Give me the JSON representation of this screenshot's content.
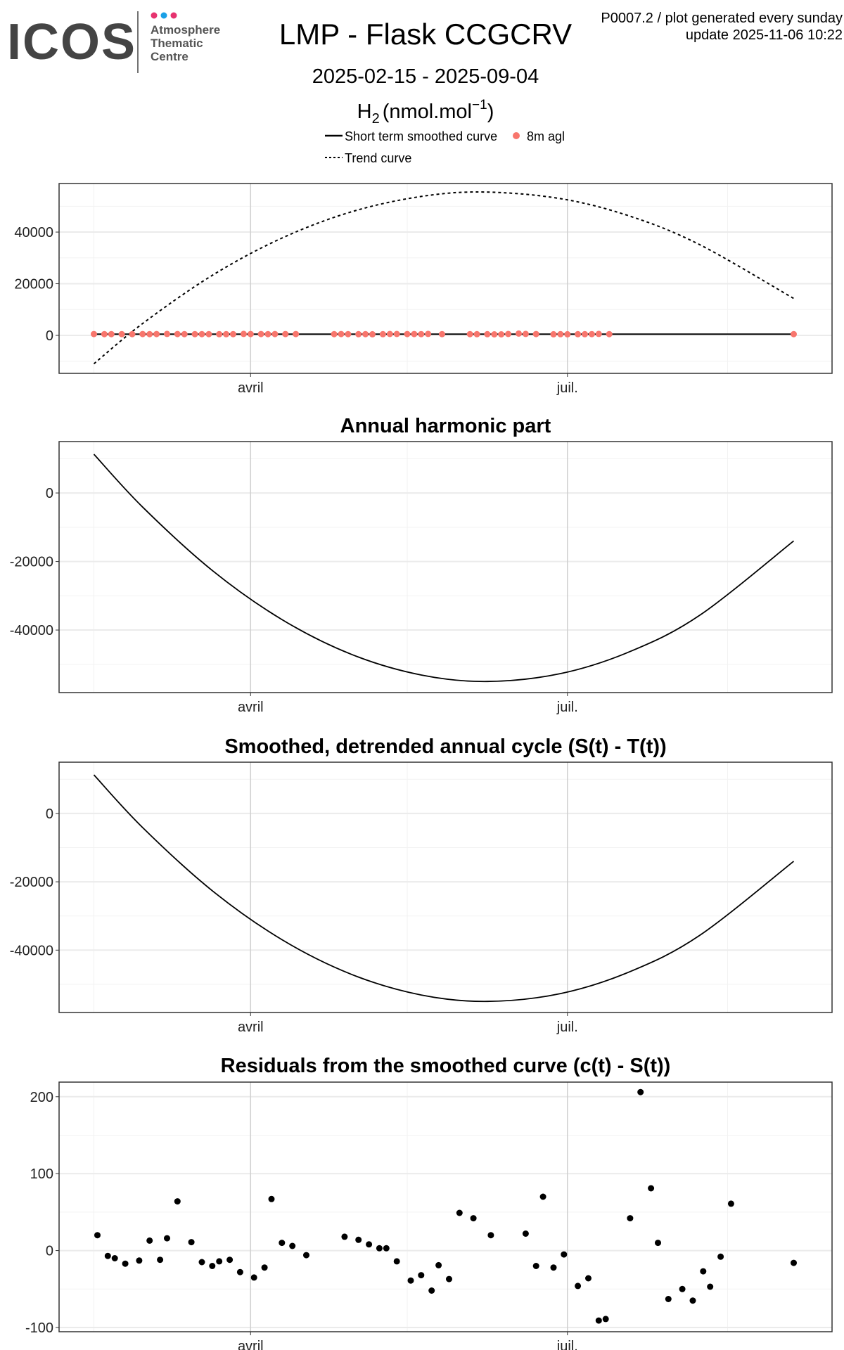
{
  "header": {
    "logo_text": "ICOS",
    "logo_sub": [
      "Atmosphere",
      "Thematic",
      "Centre"
    ],
    "logo_dot_colors": [
      "#e6336f",
      "#1aa0e6",
      "#e6336f"
    ],
    "title": "LMP - Flask CCGCRV",
    "date_range": "2025-02-15 - 2025-09-04",
    "species_main": "H",
    "species_sub": "2",
    "unit": "(nmol.mol",
    "unit_sup": "−1",
    "unit_close": ")",
    "product_line": "P0007.2 / plot generated every sunday",
    "update_line": "update  2025-11-06 10:22"
  },
  "legend": {
    "smoothed": "Short term smoothed curve",
    "points": "8m agl",
    "trend": "Trend curve"
  },
  "colors": {
    "points": "#F8766D",
    "line": "#000000",
    "residual_points": "#000000",
    "grid": "#ebebeb"
  },
  "chart_data": [
    {
      "type": "line",
      "title": "",
      "x_unit": "day of year 2025",
      "xlim": [
        36,
        258
      ],
      "x_ticks": [
        {
          "day": 91,
          "label": "avril"
        },
        {
          "day": 182,
          "label": "juil."
        }
      ],
      "ylim": [
        -14700,
        58800
      ],
      "y_ticks": [
        0,
        20000,
        40000
      ],
      "series": [
        {
          "name": "Trend curve",
          "style": "dashed",
          "x": [
            46,
            60,
            80,
            100,
            120,
            140,
            158,
            180,
            200,
            220,
            247
          ],
          "y": [
            -11000,
            4589,
            23249,
            37667,
            47845,
            53782,
            55500,
            52934,
            46149,
            35123,
            14300
          ]
        },
        {
          "name": "Short term smoothed curve",
          "style": "solid",
          "x": [
            46,
            247
          ],
          "y": [
            500,
            500
          ]
        },
        {
          "name": "8m agl",
          "style": "points",
          "x": [
            46,
            49,
            51,
            54,
            57,
            60,
            62,
            64,
            67,
            70,
            72,
            75,
            77,
            79,
            82,
            84,
            86,
            89,
            91,
            94,
            96,
            98,
            101,
            104,
            115,
            117,
            119,
            122,
            124,
            126,
            129,
            131,
            133,
            136,
            138,
            140,
            142,
            146,
            154,
            156,
            159,
            161,
            163,
            165,
            168,
            170,
            173,
            178,
            180,
            182,
            185,
            187,
            189,
            191,
            194,
            247
          ],
          "y": [
            520,
            493,
            490,
            483,
            487,
            513,
            488,
            516,
            564,
            511,
            485,
            480,
            486,
            488,
            472,
            465,
            478,
            567,
            510,
            506,
            494,
            518,
            514,
            508,
            503,
            525,
            486,
            468,
            481,
            448,
            467,
            549,
            542,
            520,
            522,
            480,
            570,
            478,
            495,
            454,
            464,
            409,
            411,
            542,
            706,
            581,
            510,
            437,
            450,
            435,
            473,
            453,
            492,
            561,
            484,
            484
          ]
        }
      ]
    },
    {
      "type": "line",
      "title": "Annual harmonic part",
      "xlim": [
        36,
        258
      ],
      "x_ticks": [
        {
          "day": 91,
          "label": "avril"
        },
        {
          "day": 182,
          "label": "juil."
        }
      ],
      "ylim": [
        -58250,
        15000
      ],
      "y_ticks": [
        -40000,
        -20000,
        0
      ],
      "series": [
        {
          "name": "Annual harmonic",
          "style": "solid",
          "x": [
            46,
            60,
            80,
            100,
            120,
            140,
            159,
            180,
            200,
            220,
            247
          ],
          "y": [
            11300,
            -4133,
            -22609,
            -36934,
            -47106,
            -53126,
            -55000,
            -52711,
            -46276,
            -35688,
            -14000
          ]
        }
      ]
    },
    {
      "type": "line",
      "title": "Smoothed, detrended annual cycle (S(t) - T(t))",
      "xlim": [
        36,
        258
      ],
      "x_ticks": [
        {
          "day": 91,
          "label": "avril"
        },
        {
          "day": 182,
          "label": "juil."
        }
      ],
      "ylim": [
        -58250,
        15000
      ],
      "y_ticks": [
        -40000,
        -20000,
        0
      ],
      "series": [
        {
          "name": "S(t) - T(t)",
          "style": "solid",
          "x": [
            46,
            60,
            80,
            100,
            120,
            140,
            159,
            180,
            200,
            220,
            247
          ],
          "y": [
            11300,
            -4133,
            -22609,
            -36934,
            -47106,
            -53126,
            -55000,
            -52711,
            -46276,
            -35688,
            -14000
          ]
        }
      ]
    },
    {
      "type": "scatter",
      "title": "Residuals from the smoothed curve (c(t) - S(t))",
      "xlim": [
        36,
        258
      ],
      "x_ticks": [
        {
          "day": 91,
          "label": "avril"
        },
        {
          "day": 182,
          "label": "juil."
        }
      ],
      "ylim": [
        -105.5,
        219
      ],
      "y_ticks": [
        -100,
        0,
        100,
        200
      ],
      "series": [
        {
          "name": "residuals",
          "style": "points-black",
          "x": [
            47,
            50,
            52,
            55,
            59,
            62,
            65,
            67,
            70,
            74,
            77,
            80,
            82,
            85,
            88,
            92,
            95,
            97,
            100,
            103,
            107,
            118,
            122,
            125,
            128,
            130,
            133,
            137,
            140,
            143,
            145,
            148,
            151,
            155,
            160,
            170,
            173,
            175,
            178,
            181,
            185,
            188,
            191,
            193,
            200,
            203,
            206,
            208,
            211,
            215,
            218,
            221,
            223,
            226,
            229,
            247
          ],
          "y": [
            20,
            -7,
            -10,
            -17,
            -13,
            13,
            -12,
            16,
            64,
            11,
            -15,
            -20,
            -14,
            -12,
            -28,
            -35,
            -22,
            67,
            10,
            6,
            -6,
            18,
            14,
            8,
            3,
            3,
            -14,
            -39,
            -32,
            -52,
            -19,
            -37,
            49,
            42,
            20,
            22,
            -20,
            70,
            -22,
            -5,
            -46,
            -36,
            -91,
            -89,
            42,
            206,
            81,
            10,
            -63,
            -50,
            -65,
            -27,
            -47,
            -8,
            61,
            -16
          ]
        }
      ]
    }
  ]
}
